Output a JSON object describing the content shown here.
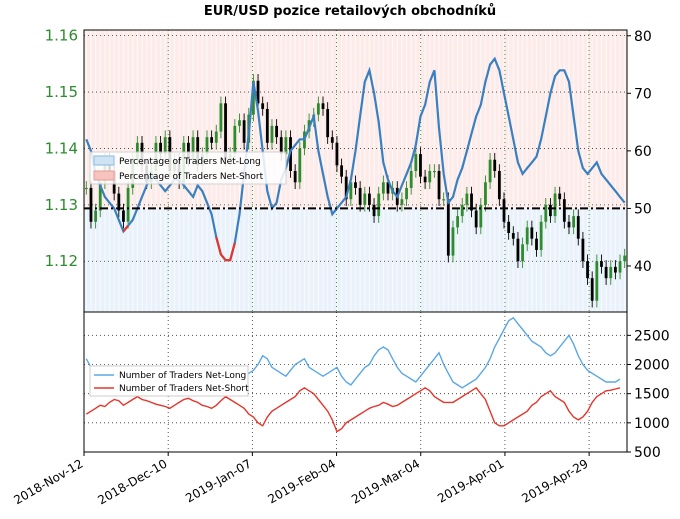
{
  "chart_data": [
    {
      "type": "line",
      "title": "EUR/USD pozice retailových obchodníků",
      "x_tick_labels": [
        "2018-Nov-12",
        "2018-Dec-10",
        "2019-Jan-07",
        "2019-Feb-04",
        "2019-Mar-04",
        "2019-Apr-01",
        "2019-Apr-29"
      ],
      "y_left": {
        "label": "",
        "ticks": [
          "1.16",
          "1.15",
          "1.14",
          "1.13",
          "1.12"
        ],
        "ylim": [
          1.111,
          1.161
        ],
        "color": "#2e8b2e"
      },
      "y_right": {
        "label": "",
        "ticks": [
          "80",
          "70",
          "60",
          "50",
          "40"
        ],
        "ylim": [
          32,
          81
        ]
      },
      "grid": true,
      "reference_line": {
        "y": 50,
        "axis": "right",
        "style": "dash-dot"
      },
      "legend": {
        "position": "center-left",
        "entries": [
          "Percentage of Traders Net-Long",
          "Percentage of Traders Net-Short"
        ]
      },
      "candles_close": [
        1.133,
        1.127,
        1.129,
        1.134,
        1.138,
        1.136,
        1.132,
        1.129,
        1.127,
        1.133,
        1.138,
        1.141,
        1.137,
        1.134,
        1.136,
        1.141,
        1.139,
        1.142,
        1.136,
        1.138,
        1.134,
        1.141,
        1.138,
        1.142,
        1.137,
        1.139,
        1.142,
        1.141,
        1.143,
        1.148,
        1.138,
        1.139,
        1.144,
        1.145,
        1.141,
        1.146,
        1.152,
        1.148,
        1.147,
        1.141,
        1.144,
        1.142,
        1.139,
        1.142,
        1.136,
        1.134,
        1.14,
        1.143,
        1.145,
        1.146,
        1.148,
        1.147,
        1.142,
        1.141,
        1.137,
        1.135,
        1.131,
        1.134,
        1.133,
        1.13,
        1.132,
        1.13,
        1.128,
        1.132,
        1.134,
        1.132,
        1.133,
        1.13,
        1.131,
        1.133,
        1.136,
        1.139,
        1.135,
        1.134,
        1.136,
        1.136,
        1.131,
        1.131,
        1.121,
        1.126,
        1.128,
        1.13,
        1.132,
        1.129,
        1.126,
        1.13,
        1.134,
        1.138,
        1.136,
        1.131,
        1.127,
        1.125,
        1.124,
        1.12,
        1.123,
        1.126,
        1.124,
        1.122,
        1.127,
        1.13,
        1.128,
        1.132,
        1.131,
        1.127,
        1.126,
        1.128,
        1.124,
        1.12,
        1.117,
        1.113,
        1.12,
        1.119,
        1.117,
        1.119,
        1.118,
        1.12,
        1.121
      ],
      "pct_net_long": [
        62,
        60,
        56,
        54,
        52,
        51,
        50,
        48,
        46,
        47,
        48,
        50,
        52,
        54,
        56,
        55,
        54,
        53,
        54,
        55,
        55,
        54,
        53,
        52,
        54,
        53,
        51,
        49,
        45,
        42,
        41,
        41,
        44,
        49,
        56,
        63,
        72,
        67,
        60,
        53,
        50,
        51,
        55,
        57,
        60,
        61,
        62,
        62,
        64,
        66,
        60,
        56,
        52,
        49,
        50,
        51,
        52,
        55,
        60,
        66,
        72,
        74,
        70,
        65,
        58,
        55,
        53,
        52,
        54,
        56,
        58,
        61,
        66,
        68,
        72,
        74,
        64,
        56,
        51,
        52,
        55,
        57,
        60,
        63,
        66,
        68,
        72,
        75,
        76,
        74,
        70,
        66,
        62,
        58,
        56,
        57,
        58,
        59,
        62,
        66,
        70,
        73,
        74,
        74,
        72,
        66,
        60,
        57,
        56,
        57,
        58,
        56,
        55,
        54,
        53,
        52,
        51
      ],
      "net_long_count": [
        2100,
        1950,
        1850,
        1800,
        1820,
        1750,
        1700,
        1650,
        1600,
        1620,
        1680,
        1700,
        1720,
        1650,
        1600,
        1580,
        1620,
        1650,
        1700,
        1680,
        1650,
        1600,
        1580,
        1560,
        1600,
        1650,
        1700,
        1680,
        1650,
        1620,
        1550,
        1500,
        1600,
        1700,
        1800,
        1850,
        1900,
        2000,
        2150,
        2100,
        1950,
        1900,
        1850,
        1800,
        1900,
        2000,
        2050,
        2100,
        1950,
        1900,
        1850,
        1800,
        1850,
        1900,
        1950,
        1800,
        1700,
        1650,
        1750,
        1850,
        1950,
        2000,
        2150,
        2250,
        2300,
        2250,
        2100,
        1950,
        1850,
        1800,
        1750,
        1700,
        1800,
        1900,
        2000,
        2100,
        2200,
        2000,
        1850,
        1700,
        1650,
        1600,
        1650,
        1700,
        1750,
        1850,
        1950,
        2100,
        2300,
        2450,
        2600,
        2750,
        2800,
        2700,
        2600,
        2500,
        2400,
        2350,
        2300,
        2200,
        2150,
        2200,
        2300,
        2400,
        2500,
        2350,
        2150,
        2000,
        1900,
        1850,
        1800,
        1750,
        1700,
        1700,
        1700,
        1750
      ],
      "net_short_count": [
        1150,
        1200,
        1250,
        1300,
        1280,
        1350,
        1400,
        1380,
        1300,
        1350,
        1400,
        1450,
        1400,
        1380,
        1350,
        1320,
        1300,
        1280,
        1250,
        1300,
        1350,
        1400,
        1420,
        1380,
        1350,
        1300,
        1280,
        1250,
        1300,
        1380,
        1450,
        1400,
        1350,
        1300,
        1250,
        1150,
        1100,
        1000,
        950,
        1100,
        1200,
        1250,
        1300,
        1350,
        1400,
        1450,
        1550,
        1600,
        1550,
        1500,
        1400,
        1300,
        1200,
        1050,
        850,
        900,
        1000,
        1050,
        1100,
        1150,
        1200,
        1250,
        1280,
        1300,
        1350,
        1320,
        1280,
        1300,
        1350,
        1400,
        1450,
        1500,
        1550,
        1600,
        1550,
        1450,
        1400,
        1350,
        1350,
        1350,
        1400,
        1450,
        1500,
        1550,
        1600,
        1500,
        1400,
        1200,
        1000,
        950,
        950,
        1000,
        1050,
        1100,
        1150,
        1200,
        1300,
        1350,
        1450,
        1500,
        1550,
        1450,
        1400,
        1350,
        1200,
        1100,
        1050,
        1100,
        1200,
        1350,
        1450,
        1500,
        1550,
        1560,
        1580,
        1600
      ],
      "lower_panel": {
        "y_ticks": [
          "2500",
          "2000",
          "1500",
          "1000",
          "500"
        ],
        "ylim": [
          500,
          2900
        ],
        "legend": {
          "position": "center-left",
          "entries": [
            "Number of Traders Net-Long",
            "Number of Traders Net-Short"
          ]
        }
      }
    }
  ],
  "colors": {
    "long": "#3a7fbf",
    "long_light": "#5aa8e6",
    "short": "#e6352b",
    "candle_up": "#2e8b2e",
    "candle_down": "#000000",
    "tick_green": "#2e8b2e"
  }
}
